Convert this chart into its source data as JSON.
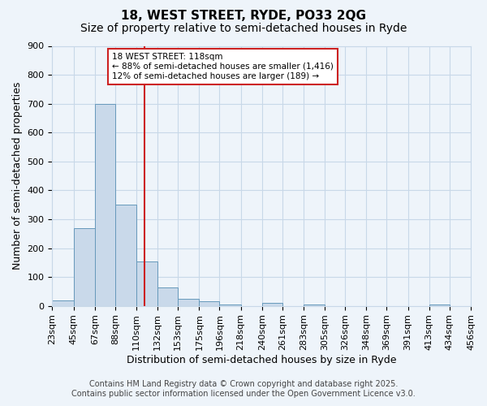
{
  "title": "18, WEST STREET, RYDE, PO33 2QG",
  "subtitle": "Size of property relative to semi-detached houses in Ryde",
  "xlabel": "Distribution of semi-detached houses by size in Ryde",
  "ylabel": "Number of semi-detached properties",
  "bin_edges": [
    23,
    45,
    67,
    88,
    110,
    132,
    153,
    175,
    196,
    218,
    240,
    261,
    283,
    305,
    326,
    348,
    369,
    391,
    413,
    434,
    456
  ],
  "bin_labels": [
    "23sqm",
    "45sqm",
    "67sqm",
    "88sqm",
    "110sqm",
    "132sqm",
    "153sqm",
    "175sqm",
    "196sqm",
    "218sqm",
    "240sqm",
    "261sqm",
    "283sqm",
    "305sqm",
    "326sqm",
    "348sqm",
    "369sqm",
    "391sqm",
    "413sqm",
    "434sqm",
    "456sqm"
  ],
  "bar_heights": [
    20,
    270,
    700,
    350,
    155,
    65,
    25,
    15,
    5,
    0,
    10,
    0,
    5,
    0,
    0,
    0,
    0,
    0,
    5,
    0
  ],
  "bar_color": "#c9d9ea",
  "bar_edge_color": "#6699bb",
  "vline_x": 118,
  "vline_color": "#cc2222",
  "ylim": [
    0,
    900
  ],
  "yticks": [
    0,
    100,
    200,
    300,
    400,
    500,
    600,
    700,
    800,
    900
  ],
  "grid_color": "#c8d8e8",
  "background_color": "#eef4fa",
  "annotation_title": "18 WEST STREET: 118sqm",
  "annotation_line1": "← 88% of semi-detached houses are smaller (1,416)",
  "annotation_line2": "12% of semi-detached houses are larger (189) →",
  "annotation_box_color": "#ffffff",
  "annotation_box_edge": "#cc2222",
  "footer1": "Contains HM Land Registry data © Crown copyright and database right 2025.",
  "footer2": "Contains public sector information licensed under the Open Government Licence v3.0.",
  "title_fontsize": 11,
  "subtitle_fontsize": 10,
  "axis_label_fontsize": 9,
  "tick_fontsize": 8,
  "footer_fontsize": 7
}
